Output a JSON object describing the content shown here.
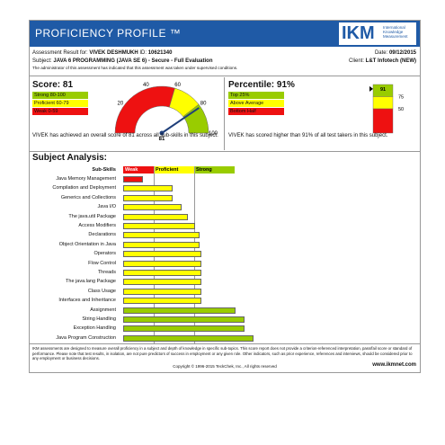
{
  "header": {
    "title": "PROFICIENCY PROFILE ™",
    "logo_text": "IKM",
    "logo_tagline": "International Knowledge Measurement"
  },
  "info": {
    "result_label": "Assessment Result for:",
    "name": "VIVEK DESHMUKH",
    "id_label": "ID:",
    "id": "10621340",
    "date_label": "Date:",
    "date": "09/12/2015",
    "subject_label": "Subject:",
    "subject": "JAVA 6 PROGRAMMING (JAVA SE 6) - Secure - Full Evaluation",
    "client_label": "Client:",
    "client": "L&T Infotech (NEW)",
    "note": "The administrator of this assessment has indicated that this assessment was taken under supervised conditions."
  },
  "score": {
    "heading": "Score: 81",
    "value": 81,
    "legend": [
      {
        "label": "Strong 80-100",
        "color": "#99cc00"
      },
      {
        "label": "Proficient 60-79",
        "color": "#ffff00"
      },
      {
        "label": "Weak 0-59",
        "color": "#ee1111"
      }
    ],
    "gauge_ticks": [
      "20",
      "40",
      "60",
      "80",
      "100"
    ],
    "gauge_zero": "0",
    "gauge_value_label": "81",
    "description": "VIVEK has achieved an overall score of 81 across all sub-skills in this subject."
  },
  "percentile": {
    "heading": "Percentile: 91%",
    "value": 91,
    "legend": [
      {
        "label": "Top 25%",
        "color": "#99cc00"
      },
      {
        "label": "Above Average",
        "color": "#ffff00"
      },
      {
        "label": "Bottom Half",
        "color": "#ee1111"
      }
    ],
    "bar_value_label": "91",
    "scale_labels": [
      "75",
      "50"
    ],
    "description": "VIVEK has scored higher than 91% of all test takers in this subject."
  },
  "analysis": {
    "title": "Subject Analysis:",
    "subskills_label": "Sub-Skills",
    "bands": [
      {
        "label": "Weak",
        "color": "#ee1111"
      },
      {
        "label": "Proficient",
        "color": "#ffff00"
      },
      {
        "label": "Strong",
        "color": "#99cc00"
      }
    ],
    "rows": [
      {
        "name": "Java Memory Management",
        "value": 22,
        "color": "#ee1111"
      },
      {
        "name": "Compilation and Deployment",
        "value": 55,
        "color": "#ffff00"
      },
      {
        "name": "Generics and Collections",
        "value": 55,
        "color": "#ffff00"
      },
      {
        "name": "Java I/O",
        "value": 65,
        "color": "#ffff00"
      },
      {
        "name": "The java.util Package",
        "value": 72,
        "color": "#ffff00"
      },
      {
        "name": "Access Modifiers",
        "value": 80,
        "color": "#ffff00"
      },
      {
        "name": "Declarations",
        "value": 85,
        "color": "#ffff00"
      },
      {
        "name": "Object Orientation in Java",
        "value": 85,
        "color": "#ffff00"
      },
      {
        "name": "Operators",
        "value": 87,
        "color": "#ffff00"
      },
      {
        "name": "Flow Control",
        "value": 87,
        "color": "#ffff00"
      },
      {
        "name": "Threads",
        "value": 87,
        "color": "#ffff00"
      },
      {
        "name": "The java.lang Package",
        "value": 87,
        "color": "#ffff00"
      },
      {
        "name": "Class Usage",
        "value": 87,
        "color": "#ffff00"
      },
      {
        "name": "Interfaces and Inheritance",
        "value": 87,
        "color": "#ffff00"
      },
      {
        "name": "Assignment",
        "value": 125,
        "color": "#99cc00"
      },
      {
        "name": "String Handling",
        "value": 135,
        "color": "#99cc00"
      },
      {
        "name": "Exception Handling",
        "value": 135,
        "color": "#99cc00"
      },
      {
        "name": "Java Program Construction",
        "value": 145,
        "color": "#99cc00"
      }
    ]
  },
  "footer": {
    "disclaimer": "IKM assessments are designed to measure overall proficiency in a subject and depth of knowledge in specific sub-topics. This score report does not provide a criterion-referenced interpretation, pass/fail score or standard of performance. Please note that test results, in isolation, are not pure predictors of success in employment or any given role. Other indicators, such as prior experience, references and interviews, should be considered prior to any employment or business decisions.",
    "copyright": "Copyright © 1996-2015 TeckChek, Inc., All rights reserved",
    "url": "www.ikmnet.com"
  }
}
